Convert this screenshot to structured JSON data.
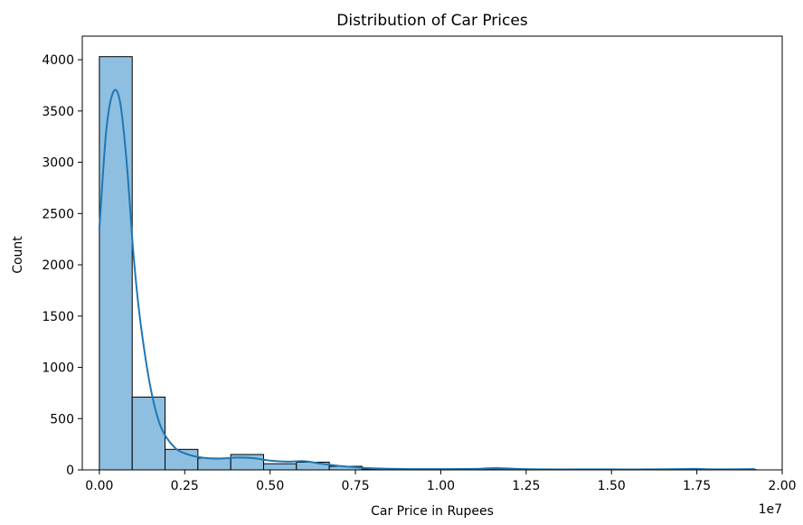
{
  "chart_data": {
    "type": "bar",
    "title": "Distribution of Car Prices",
    "xlabel": "Car Price in Rupees",
    "ylabel": "Count",
    "x_offset_label": "1e7",
    "x_scale": 10000000,
    "xlim": [
      -0.05,
      2.0
    ],
    "ylim": [
      0,
      4230
    ],
    "xticks": [
      0.0,
      0.25,
      0.5,
      0.75,
      1.0,
      1.25,
      1.5,
      1.75,
      2.0
    ],
    "xtick_labels": [
      "0.00",
      "0.25",
      "0.50",
      "0.75",
      "1.00",
      "1.25",
      "1.50",
      "1.75",
      "2.00"
    ],
    "yticks": [
      0,
      500,
      1000,
      1500,
      2000,
      2500,
      3000,
      3500,
      4000
    ],
    "ytick_labels": [
      "0",
      "500",
      "1000",
      "1500",
      "2000",
      "2500",
      "3000",
      "3500",
      "4000"
    ],
    "bins": {
      "start": 0.0,
      "width": 0.0962,
      "counts": [
        4030,
        710,
        200,
        115,
        150,
        60,
        75,
        35,
        8,
        5,
        3,
        10,
        3,
        2,
        2,
        2,
        2,
        5,
        3,
        3
      ]
    },
    "kde": {
      "x": [
        0.0,
        0.02,
        0.04,
        0.06,
        0.08,
        0.1,
        0.12,
        0.15,
        0.18,
        0.22,
        0.26,
        0.3,
        0.35,
        0.4,
        0.45,
        0.5,
        0.55,
        0.6,
        0.65,
        0.7,
        0.75,
        0.8,
        0.9,
        1.0,
        1.1,
        1.16,
        1.22,
        1.3,
        1.4,
        1.5,
        1.6,
        1.7,
        1.75,
        1.8,
        1.92
      ],
      "y": [
        2350,
        3300,
        3680,
        3600,
        3000,
        2100,
        1450,
        800,
        420,
        220,
        150,
        120,
        110,
        120,
        115,
        90,
        80,
        85,
        60,
        40,
        25,
        15,
        8,
        8,
        10,
        18,
        10,
        5,
        5,
        5,
        5,
        8,
        10,
        5,
        8
      ]
    },
    "bar_fill": "#8ebfe0",
    "bar_edge": "#000000",
    "kde_color": "#1f77b4",
    "grid": false
  }
}
